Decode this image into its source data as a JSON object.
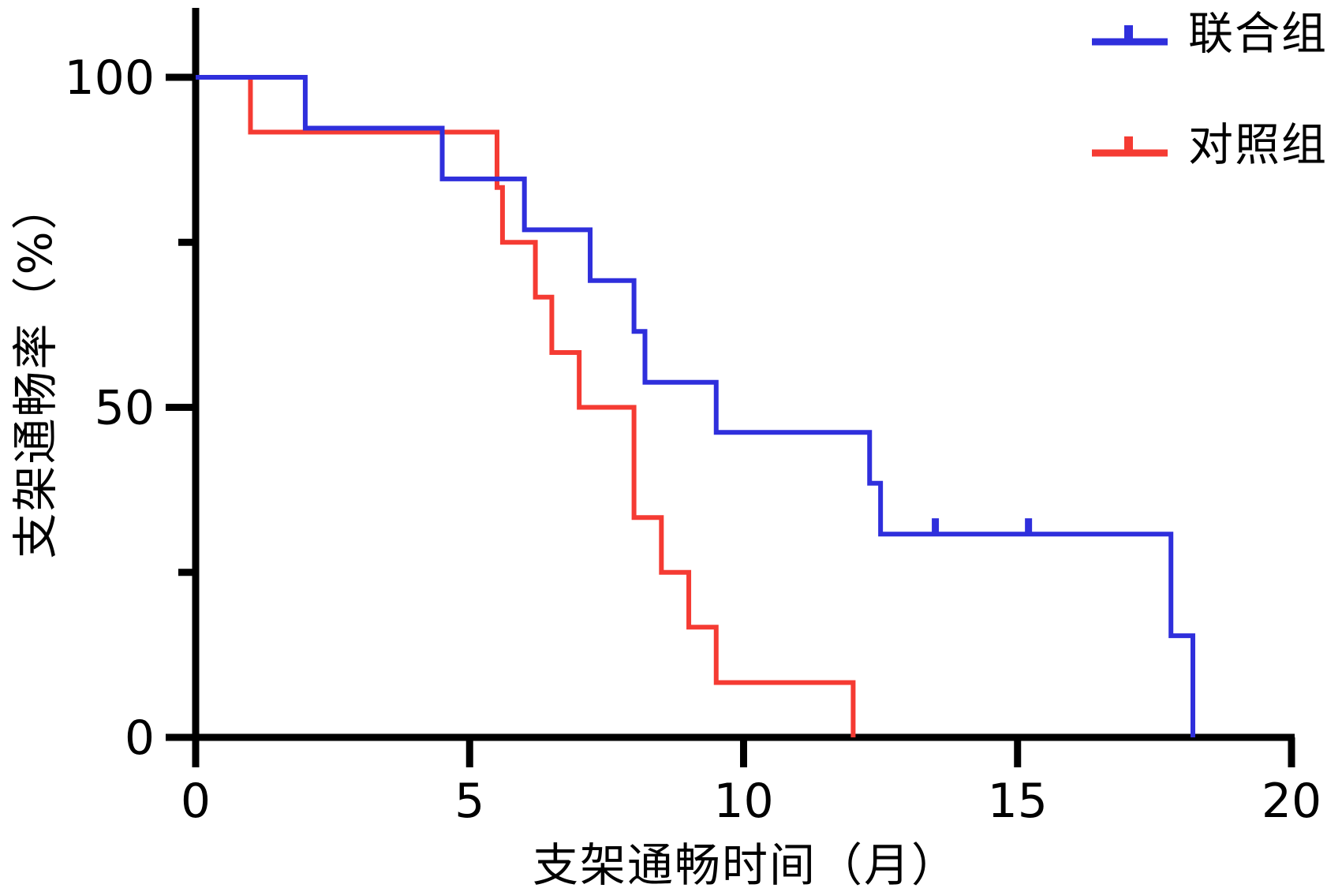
{
  "figure": {
    "background": "#ffffff",
    "axis_color": "#000000"
  },
  "chart_data": {
    "type": "line",
    "style": "kaplan-meier-step",
    "title": "",
    "xlabel": "支架通畅时间（月）",
    "ylabel": "支架通畅率（%）",
    "xlim": [
      0,
      20
    ],
    "ylim": [
      0,
      100
    ],
    "grid": false,
    "legend_position": "top-right",
    "x_ticks": [
      {
        "value": 0,
        "label": "0"
      },
      {
        "value": 5,
        "label": "5"
      },
      {
        "value": 10,
        "label": "10"
      },
      {
        "value": 15,
        "label": "15"
      },
      {
        "value": 20,
        "label": "20"
      }
    ],
    "y_ticks_major": [
      {
        "value": 0,
        "label": "0"
      },
      {
        "value": 50,
        "label": "50"
      },
      {
        "value": 100,
        "label": "100"
      }
    ],
    "y_ticks_minor": [
      25,
      75
    ],
    "series": [
      {
        "name": "联合组",
        "color": "#2f2fdc",
        "start": [
          0,
          100
        ],
        "steps": [
          [
            2,
            92.3
          ],
          [
            4.5,
            84.6
          ],
          [
            6,
            76.9
          ],
          [
            7.2,
            69.2
          ],
          [
            8,
            61.5
          ],
          [
            8.2,
            53.8
          ],
          [
            9.5,
            46.2
          ],
          [
            12.3,
            38.5
          ],
          [
            12.5,
            30.8
          ],
          [
            17.8,
            15.4
          ],
          [
            18.2,
            0
          ]
        ],
        "censor_marks": [
          [
            13.5,
            30.8
          ],
          [
            15.2,
            30.8
          ]
        ]
      },
      {
        "name": "对照组",
        "color": "#f53b33",
        "start": [
          0,
          100
        ],
        "steps": [
          [
            1,
            91.7
          ],
          [
            5.5,
            83.3
          ],
          [
            5.6,
            75
          ],
          [
            6.2,
            66.7
          ],
          [
            6.5,
            58.3
          ],
          [
            7,
            50
          ],
          [
            8,
            33.3
          ],
          [
            8.5,
            25
          ],
          [
            9,
            16.7
          ],
          [
            9.5,
            8.3
          ],
          [
            12,
            0
          ]
        ],
        "censor_marks": []
      }
    ]
  }
}
